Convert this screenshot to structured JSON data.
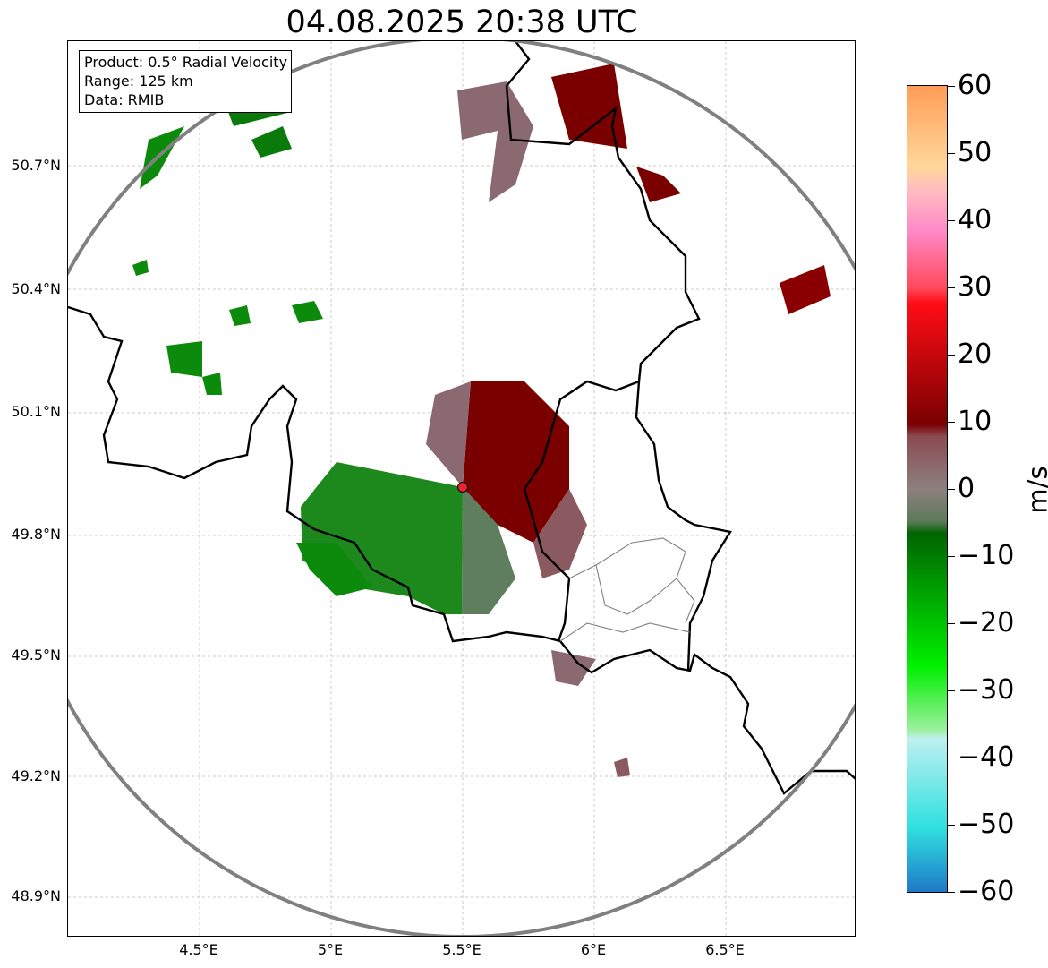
{
  "title": "04.08.2025 20:38 UTC",
  "info": {
    "product": "Product: 0.5° Radial Velocity",
    "range": "Range: 125 km",
    "data": "Data: RMIB"
  },
  "axes": {
    "lat_labels": [
      "50.7°N",
      "50.4°N",
      "50.1°N",
      "49.8°N",
      "49.5°N",
      "49.2°N",
      "48.9°N"
    ],
    "lon_labels": [
      "4.5°E",
      "5°E",
      "5.5°E",
      "6°E",
      "6.5°E"
    ]
  },
  "colorbar": {
    "unit": "m/s",
    "ticks": [
      "60",
      "50",
      "40",
      "30",
      "20",
      "10",
      "0",
      "−10",
      "−20",
      "−30",
      "−40",
      "−50",
      "−60"
    ]
  },
  "colors": {
    "range_ring": "#808080",
    "radar_site": "#e8262a",
    "border": "#000000"
  }
}
